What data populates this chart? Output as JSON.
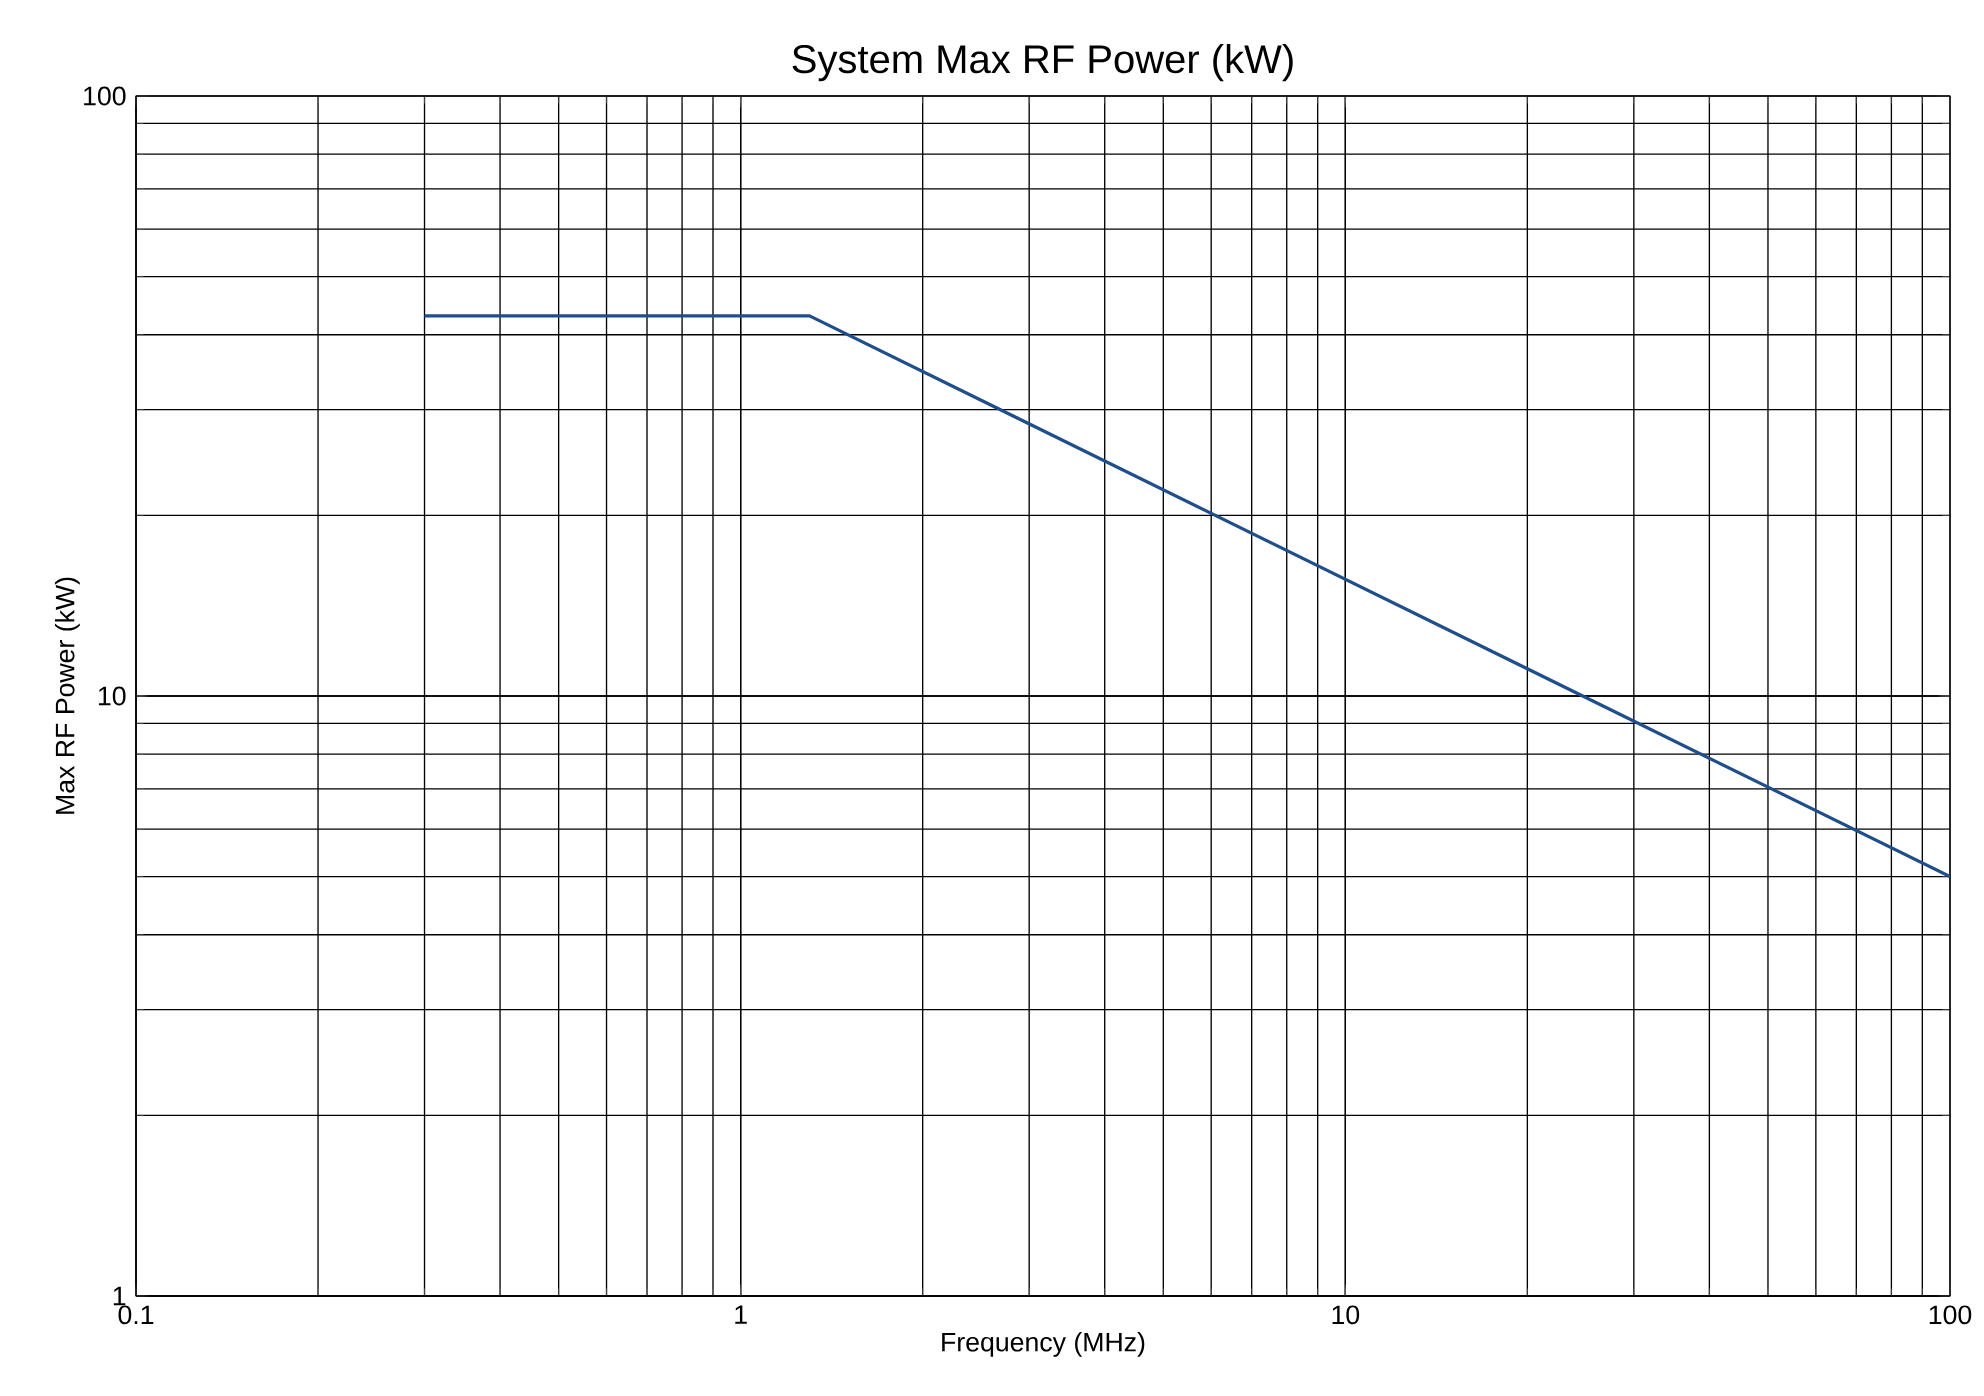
{
  "chart_data": {
    "type": "line",
    "title": "System Max RF Power (kW)",
    "xlabel": "Frequency (MHz)",
    "ylabel": "Max RF Power (kW)",
    "x": [
      0.3,
      1.3,
      100
    ],
    "series": [
      {
        "color": "#1f4e8c",
        "values": [
          43,
          43,
          5
        ]
      }
    ],
    "log": "xy",
    "xlim": [
      0.1,
      100
    ],
    "ylim": [
      1,
      100
    ],
    "xticks": [
      0.1,
      1,
      10,
      100
    ],
    "yticks": [
      1,
      10,
      100
    ],
    "grid": true,
    "marker": "none",
    "line_style": "solid"
  }
}
